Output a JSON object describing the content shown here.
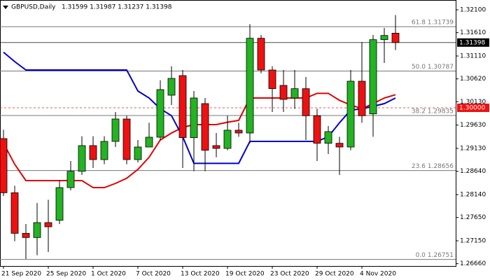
{
  "chart_data": {
    "type": "candlestick",
    "title": "GBPUSD,Daily",
    "header_quote": "1.31599 1.31987 1.31237 1.31398",
    "categories": [
      "21 Sep 2020",
      null,
      null,
      null,
      "25 Sep 2020",
      null,
      null,
      null,
      "1 Oct 2020",
      null,
      null,
      null,
      "7 Oct 2020",
      null,
      null,
      null,
      "13 Oct 2020",
      null,
      null,
      null,
      "19 Oct 2020",
      null,
      null,
      null,
      "23 Oct 2020",
      null,
      null,
      null,
      "29 Oct 2020",
      null,
      null,
      null,
      "4 Nov 2020",
      null,
      null,
      null
    ],
    "open": [
      1.2934,
      1.2818,
      1.2731,
      1.2722,
      1.2754,
      1.2759,
      1.2829,
      1.2864,
      1.2919,
      1.2889,
      1.2928,
      1.2976,
      1.2889,
      1.2916,
      1.2937,
      1.3027,
      1.3069,
      1.2936,
      1.3009,
      1.2919,
      1.2913,
      1.2952,
      1.2946,
      1.3149,
      1.3081,
      1.3048,
      1.3021,
      1.3041,
      1.2983,
      1.2924,
      1.2924,
      1.2916,
      1.3057,
      1.2987,
      1.3146,
      1.31599
    ],
    "high": [
      1.2953,
      1.2833,
      1.2751,
      1.2796,
      1.2803,
      1.2844,
      1.2886,
      1.2939,
      1.2939,
      1.2939,
      1.2991,
      1.2983,
      1.2931,
      1.2968,
      1.3059,
      1.3089,
      1.3081,
      1.3036,
      1.3021,
      1.2946,
      1.2983,
      1.2968,
      1.3179,
      1.3156,
      1.3089,
      1.3081,
      1.3081,
      1.3066,
      1.2998,
      1.2961,
      1.2938,
      1.3081,
      1.3141,
      1.3156,
      1.3171,
      1.31987
    ],
    "low": [
      1.2811,
      1.2714,
      1.2676,
      1.2684,
      1.2691,
      1.2751,
      1.2823,
      1.2856,
      1.2871,
      1.2879,
      1.2916,
      1.2879,
      1.2883,
      1.2916,
      1.2931,
      1.3006,
      1.2871,
      1.2864,
      1.2864,
      1.2894,
      1.2909,
      1.2938,
      1.2924,
      1.3074,
      1.2991,
      1.2991,
      1.2998,
      1.2931,
      1.2886,
      1.2901,
      1.2856,
      1.2909,
      1.2968,
      1.2938,
      1.3096,
      1.31237
    ],
    "close": [
      1.2818,
      1.2731,
      1.2722,
      1.2754,
      1.2745,
      1.2829,
      1.2864,
      1.2919,
      1.2889,
      1.2928,
      1.2976,
      1.2889,
      1.2916,
      1.2937,
      1.3039,
      1.3063,
      1.2936,
      1.3021,
      1.2909,
      1.2913,
      1.2952,
      1.2946,
      1.3149,
      1.3081,
      1.3041,
      1.3018,
      1.3041,
      1.2983,
      1.2924,
      1.2949,
      1.2916,
      1.3057,
      1.2983,
      1.3146,
      1.3155,
      1.31398
    ],
    "up_color": "#22b422",
    "down_color": "#ee1111",
    "series": [
      {
        "color": "#e00000",
        "values": [
          1.2924,
          1.2879,
          1.2844,
          1.2844,
          1.2844,
          1.2844,
          1.2844,
          1.2844,
          1.2829,
          1.2829,
          1.2838,
          1.2849,
          1.2868,
          1.2894,
          1.2931,
          1.2946,
          1.2958,
          1.2964,
          1.2964,
          1.2964,
          1.2969,
          1.2973,
          1.3021,
          1.3021,
          1.3021,
          1.3021,
          1.3021,
          1.3021,
          1.3031,
          1.3031,
          1.3016,
          1.3006,
          1.2998,
          1.3009,
          1.3021,
          1.3028
        ]
      },
      {
        "color": "#0000cc",
        "values": [
          1.3119,
          1.3099,
          1.3081,
          1.3081,
          1.3081,
          1.3081,
          1.3081,
          1.3081,
          1.3081,
          1.3081,
          1.3081,
          1.3081,
          1.3036,
          1.3021,
          1.2998,
          1.2983,
          1.2938,
          1.2881,
          1.2881,
          1.2881,
          1.2881,
          1.2881,
          1.2928,
          1.2928,
          1.2928,
          1.2928,
          1.2928,
          1.2928,
          1.2928,
          1.2938,
          1.2968,
          1.2995,
          1.2998,
          1.3003,
          1.3009,
          1.3021
        ]
      }
    ],
    "levels": [
      {
        "value": 1.31739,
        "label": "61.8 1.31739"
      },
      {
        "value": 1.30787,
        "label": "50.0 1.30787"
      },
      {
        "value": 1.29835,
        "label": "38.2 1.29835"
      },
      {
        "value": 1.28656,
        "label": "23.6 1.28656"
      },
      {
        "value": 1.26751,
        "label": "0.0 1.26751"
      }
    ],
    "price_lines": [
      {
        "value": 1.31398,
        "label": "1.31398",
        "color": "#000000"
      },
      {
        "value": 1.3,
        "label": "1.30000",
        "color": "#ee1111"
      }
    ],
    "ylim": [
      1.2661,
      1.3231
    ],
    "yticks": [
      {
        "value": 1.321,
        "label": "1.32100"
      },
      {
        "value": 1.3161,
        "label": "1.31610"
      },
      {
        "value": 1.3111,
        "label": "1.31110"
      },
      {
        "value": 1.3062,
        "label": "1.30620"
      },
      {
        "value": 1.3013,
        "label": "1.30130"
      },
      {
        "value": 1.2963,
        "label": "1.29630"
      },
      {
        "value": 1.2913,
        "label": "1.29130"
      },
      {
        "value": 1.2864,
        "label": "1.28640"
      },
      {
        "value": 1.2814,
        "label": "1.28140"
      },
      {
        "value": 1.2765,
        "label": "1.27650"
      },
      {
        "value": 1.2715,
        "label": "1.27150"
      },
      {
        "value": 1.2666,
        "label": "1.26660"
      }
    ]
  }
}
